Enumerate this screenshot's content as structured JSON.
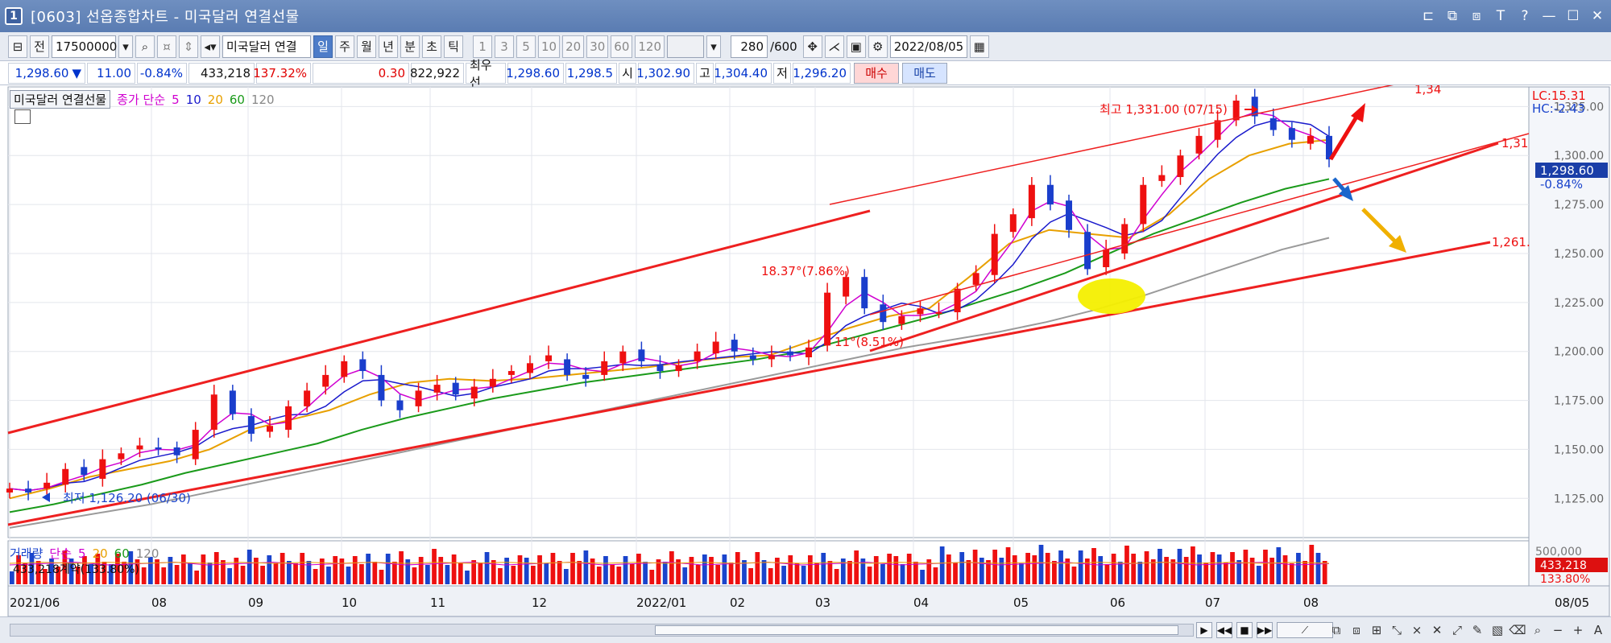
{
  "window": {
    "icon_label": "1",
    "title": "[0603] 선옵종합차트 - 미국달러 연결선물",
    "controls": [
      "⊏",
      "⧉",
      "⧈",
      "T",
      "?",
      "—",
      "☐",
      "✕"
    ]
  },
  "toolbar": {
    "prefix_label": "전",
    "code_value": "17500000",
    "instrument": "미국달러 연결",
    "periods": [
      "일",
      "주",
      "월",
      "년",
      "분",
      "초",
      "틱"
    ],
    "active_period": "일",
    "minute_options": [
      "1",
      "3",
      "5",
      "10",
      "20",
      "30",
      "60",
      "120"
    ],
    "count_value": "280",
    "count_total": "/600",
    "date_value": "2022/08/05"
  },
  "quote": {
    "price": "1,298.60",
    "direction": "▼",
    "change": "11.00",
    "change_pct": "-0.84%",
    "volume": "433,218",
    "volume_ratio": "137.32%",
    "basis": "0.30",
    "open_interest": "822,922",
    "best_label": "최우선",
    "best_bid": "1,298.60",
    "best_ask": "1,298.5",
    "open_label": "시",
    "open_value": "1,302.90",
    "high_label": "고",
    "high_value": "1,304.40",
    "low_label": "저",
    "low_value": "1,296.20",
    "buy_label": "매수",
    "sell_label": "매도"
  },
  "legend": {
    "name": "미국달러 연결선물",
    "ma_label": "종가 단순",
    "ma_periods": [
      "5",
      "10",
      "20",
      "60",
      "120"
    ],
    "ma_colors": [
      "#d000d0",
      "#1a1acc",
      "#e8a000",
      "#1a9a1a",
      "#888888"
    ]
  },
  "volume_legend": {
    "name": "거래량",
    "ma_label": "단순",
    "ma_periods": [
      "5",
      "20",
      "60",
      "120"
    ],
    "summary": "433,218계약(133.80%)"
  },
  "right_axis": {
    "lc": "LC:15.31",
    "hc": "HC:-2.43",
    "current": "1,298.60",
    "current_pct": "-0.84%",
    "ticks": [
      "1,325.00",
      "1,300.00",
      "1,275.00",
      "1,250.00",
      "1,225.00",
      "1,200.00",
      "1,175.00",
      "1,150.00",
      "1,125.00"
    ],
    "vol_current": "433,218",
    "vol_pct": "133.80%",
    "vol_tick": "500,000",
    "date_label": "08/05"
  },
  "annotations": {
    "high_label": "최고 1,331.00 (07/15)",
    "low_label": "최저 1,126.20 (06/30)",
    "angle1": "18.37°(7.86%)",
    "angle2": "11°(8.51%)",
    "line_label_top": "1,34",
    "line_label_mid": "1,31",
    "line_label_low": "1,261."
  },
  "chart_data": {
    "type": "line",
    "x_labels": [
      "2021/06",
      "08",
      "09",
      "10",
      "11",
      "12",
      "2022/01",
      "02",
      "03",
      "04",
      "05",
      "06",
      "07",
      "08"
    ],
    "ylim": [
      1105,
      1335
    ],
    "candles_note": "",
    "price_series": {
      "name": "",
      "values": [
        1130,
        1128,
        1133,
        1140,
        1137,
        1145,
        1148,
        1152,
        1150,
        1147,
        1160,
        1178,
        1168,
        1158,
        1162,
        1172,
        1180,
        1188,
        1195,
        1190,
        1175,
        1170,
        1180,
        1183,
        1178,
        1182,
        1186,
        1190,
        1194,
        1198,
        1188,
        1186,
        1195,
        1200,
        1195,
        1190,
        1193,
        1200,
        1205,
        1200,
        1196,
        1198,
        1198,
        1202,
        1230,
        1238,
        1222,
        1215,
        1218,
        1222,
        1220,
        1232,
        1240,
        1260,
        1270,
        1285,
        1275,
        1262,
        1242,
        1252,
        1265,
        1285,
        1290,
        1300,
        1310,
        1318,
        1328,
        1320,
        1313,
        1308,
        1310,
        1298
      ]
    },
    "ma_values": {
      "ma20": [
        1125,
        1130,
        1136,
        1140,
        1144,
        1150,
        1160,
        1165,
        1170,
        1178,
        1184,
        1186,
        1185,
        1186,
        1188,
        1190,
        1192,
        1195,
        1197,
        1198,
        1205,
        1212,
        1218,
        1222,
        1238,
        1255,
        1262,
        1260,
        1258,
        1270,
        1288,
        1300,
        1306,
        1308
      ],
      "ma60": [
        1118,
        1122,
        1127,
        1132,
        1138,
        1143,
        1148,
        1153,
        1160,
        1166,
        1171,
        1176,
        1180,
        1184,
        1187,
        1190,
        1193,
        1196,
        1200,
        1206,
        1212,
        1218,
        1225,
        1232,
        1240,
        1250,
        1260,
        1268,
        1276,
        1283,
        1288
      ],
      "ma120": [
        1110,
        1114,
        1118,
        1122,
        1127,
        1132,
        1137,
        1142,
        1147,
        1152,
        1157,
        1162,
        1167,
        1172,
        1177,
        1182,
        1187,
        1192,
        1197,
        1202,
        1206,
        1210,
        1215,
        1221,
        1228,
        1236,
        1244,
        1252,
        1258
      ]
    }
  }
}
